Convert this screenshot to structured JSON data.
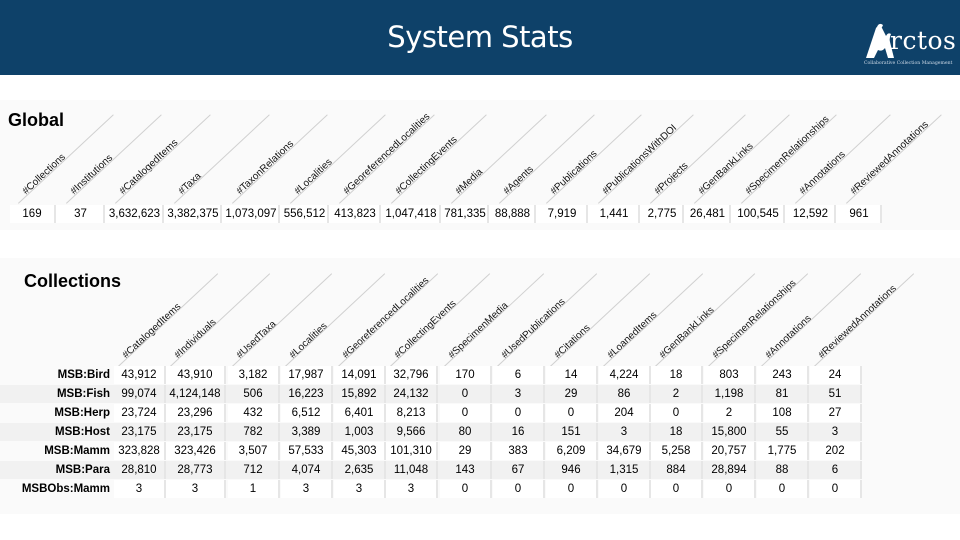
{
  "header": {
    "title": "System Stats",
    "logo_text": "rctos",
    "logo_tagline": "Collaborative Collection Management"
  },
  "global": {
    "title": "Global",
    "columns": [
      "#Collections",
      "#Institutions",
      "#CatalogedItems",
      "#Taxa",
      "#TaxonRelations",
      "#Localities",
      "#GeoreferencedLocalities",
      "#CollectingEvents",
      "#Media",
      "#Agents",
      "#Publications",
      "#PublicationsWithDOI",
      "#Projects",
      "#GenBankLinks",
      "#SpecimenRelationships",
      "#Annotations",
      "#ReviewedAnnotations"
    ],
    "values": [
      "169",
      "37",
      "3,632,623",
      "3,382,375",
      "1,073,097",
      "556,512",
      "413,823",
      "1,047,418",
      "781,335",
      "88,888",
      "7,919",
      "1,441",
      "2,775",
      "26,481",
      "100,545",
      "12,592",
      "961"
    ]
  },
  "collections": {
    "title": "Collections",
    "columns": [
      "#CatalogedItems",
      "#Individuals",
      "#UsedTaxa",
      "#Localities",
      "#GeoreferencedLocalities",
      "#CollectingEvents",
      "#SpecimenMedia",
      "#UsedPublications",
      "#Citations",
      "#LoanedItems",
      "#GenBankLinks",
      "#SpecimenRelationships",
      "#Annotations",
      "#ReviewedAnnotations"
    ],
    "rows": [
      {
        "label": "MSB:Bird",
        "values": [
          "43,912",
          "43,910",
          "3,182",
          "17,987",
          "14,091",
          "32,796",
          "170",
          "6",
          "14",
          "4,224",
          "18",
          "803",
          "243",
          "24"
        ]
      },
      {
        "label": "MSB:Fish",
        "values": [
          "99,074",
          "4,124,148",
          "506",
          "16,223",
          "15,892",
          "24,132",
          "0",
          "3",
          "29",
          "86",
          "2",
          "1,198",
          "81",
          "51"
        ]
      },
      {
        "label": "MSB:Herp",
        "values": [
          "23,724",
          "23,296",
          "432",
          "6,512",
          "6,401",
          "8,213",
          "0",
          "0",
          "0",
          "204",
          "0",
          "2",
          "108",
          "27"
        ]
      },
      {
        "label": "MSB:Host",
        "values": [
          "23,175",
          "23,175",
          "782",
          "3,389",
          "1,003",
          "9,566",
          "80",
          "16",
          "151",
          "3",
          "18",
          "15,800",
          "55",
          "3"
        ]
      },
      {
        "label": "MSB:Mamm",
        "values": [
          "323,828",
          "323,426",
          "3,507",
          "57,533",
          "45,303",
          "101,310",
          "29",
          "383",
          "6,209",
          "34,679",
          "5,258",
          "20,757",
          "1,775",
          "202"
        ]
      },
      {
        "label": "MSB:Para",
        "values": [
          "28,810",
          "28,773",
          "712",
          "4,074",
          "2,635",
          "11,048",
          "143",
          "67",
          "946",
          "1,315",
          "884",
          "28,894",
          "88",
          "6"
        ]
      },
      {
        "label": "MSBObs:Mamm",
        "values": [
          "3",
          "3",
          "1",
          "3",
          "3",
          "3",
          "0",
          "0",
          "0",
          "0",
          "0",
          "0",
          "0",
          "0"
        ]
      }
    ]
  }
}
